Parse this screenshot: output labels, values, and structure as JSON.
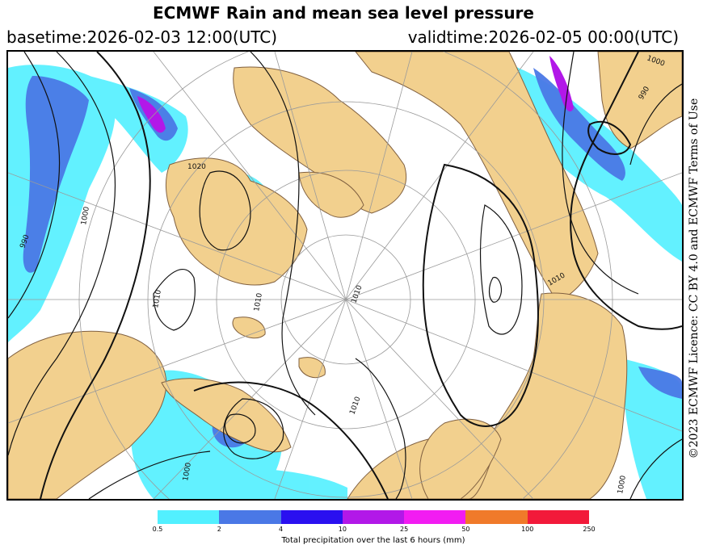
{
  "title": "ECMWF Rain and mean sea level pressure",
  "basetime": "basetime:2026-02-03 12:00(UTC)",
  "validtime": "validtime:2026-02-05 00:00(UTC)",
  "licence": "©2023 ECMWF Licence: CC BY 4.0 and ECMWF Terms of Use",
  "colors": {
    "land": "#f2d08e",
    "ocean": "#ffffff",
    "coast": "#806040",
    "isobar": "#111111",
    "graticule": "#9a9a9a"
  },
  "colorbar": {
    "label": "Total precipitation over the last 6 hours (mm)",
    "ticks": [
      "0.5",
      "2",
      "4",
      "10",
      "25",
      "50",
      "100",
      "250"
    ],
    "colors": [
      "#52f0ff",
      "#4a78e6",
      "#2a10f0",
      "#b218e8",
      "#f21cf2",
      "#f07a2a",
      "#f21a3a"
    ]
  },
  "isobar_labels": [
    "1020",
    "1000",
    "990",
    "1010",
    "1010",
    "1010",
    "1010",
    "1000",
    "990",
    "1000",
    "1010",
    "1000"
  ]
}
